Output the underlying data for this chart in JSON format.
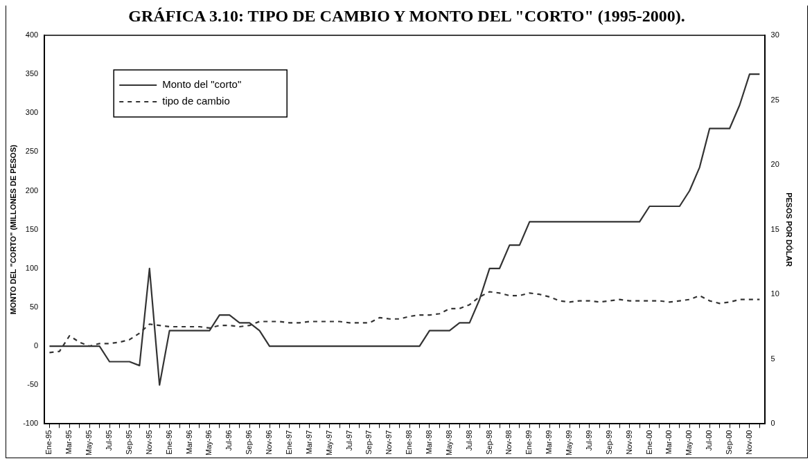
{
  "chart_data": {
    "type": "line",
    "title": "GRÁFICA 3.10: TIPO DE CAMBIO Y MONTO DEL \"CORTO\" (1995-2000).",
    "ylabel": "MONTO DEL \"CORTO\" (MILLONES DE PESOS)",
    "y2label": "PESOS POR DÓLAR",
    "categories": [
      "Ene-95",
      null,
      "Mar-95",
      null,
      "May-95",
      null,
      "Jul-95",
      null,
      "Sep-95",
      null,
      "Nov-95",
      null,
      "Ene-96",
      null,
      "Mar-96",
      null,
      "May-96",
      null,
      "Jul-96",
      null,
      "Sep-96",
      null,
      "Nov-96",
      null,
      "Ene-97",
      null,
      "Mar-97",
      null,
      "May-97",
      null,
      "Jul-97",
      null,
      "Sep-97",
      null,
      "Nov-97",
      null,
      "Ene-98",
      null,
      "Mar-98",
      null,
      "May-98",
      null,
      "Jul-98",
      null,
      "Sep-98",
      null,
      "Nov-98",
      null,
      "Ene-99",
      null,
      "Mar-99",
      null,
      "May-99",
      null,
      "Jul-99",
      null,
      "Sep-99",
      null,
      "Nov-99",
      null,
      "Ene-00",
      null,
      "Mar-00",
      null,
      "May-00",
      null,
      "Jul-00",
      null,
      "Sep-00",
      null,
      "Nov-00",
      null
    ],
    "series": [
      {
        "name": "Monto del \"corto\"",
        "color": "#333333",
        "line_style": "solid",
        "values": [
          0,
          0,
          0,
          0,
          0,
          0,
          -20,
          -20,
          -20,
          -25,
          100,
          -50,
          20,
          20,
          20,
          20,
          20,
          40,
          40,
          30,
          30,
          20,
          0,
          0,
          0,
          0,
          0,
          0,
          0,
          0,
          0,
          0,
          0,
          0,
          0,
          0,
          0,
          0,
          20,
          20,
          20,
          30,
          30,
          60,
          100,
          100,
          130,
          130,
          160,
          160,
          160,
          160,
          160,
          160,
          160,
          160,
          160,
          160,
          160,
          160,
          180,
          180,
          180,
          180,
          200,
          230,
          280,
          280,
          280,
          310,
          350,
          350
        ]
      },
      {
        "name": "tipo de cambio",
        "color": "#333333",
        "line_style": "dashed",
        "axis": "y2",
        "values": [
          5.5,
          5.6,
          6.8,
          6.3,
          6.0,
          6.2,
          6.2,
          6.3,
          6.5,
          7.0,
          7.7,
          7.6,
          7.5,
          7.5,
          7.5,
          7.5,
          7.4,
          7.6,
          7.6,
          7.5,
          7.6,
          7.9,
          7.9,
          7.9,
          7.8,
          7.8,
          7.9,
          7.9,
          7.9,
          7.9,
          7.8,
          7.8,
          7.8,
          8.2,
          8.1,
          8.1,
          8.3,
          8.4,
          8.4,
          8.5,
          8.9,
          8.9,
          9.2,
          9.8,
          10.2,
          10.1,
          9.9,
          9.9,
          10.1,
          10.0,
          9.8,
          9.5,
          9.4,
          9.5,
          9.5,
          9.4,
          9.5,
          9.6,
          9.5,
          9.5,
          9.5,
          9.5,
          9.4,
          9.5,
          9.6,
          9.9,
          9.5,
          9.3,
          9.4,
          9.6,
          9.6,
          9.6
        ]
      }
    ],
    "ylim": [
      -100,
      400
    ],
    "yticks": [
      -100,
      -50,
      0,
      50,
      100,
      150,
      200,
      250,
      300,
      350,
      400
    ],
    "y2lim": [
      0,
      30
    ],
    "y2ticks": [
      0,
      5,
      10,
      15,
      20,
      25,
      30
    ],
    "legend": "top left",
    "grid": false,
    "marker": "none"
  }
}
